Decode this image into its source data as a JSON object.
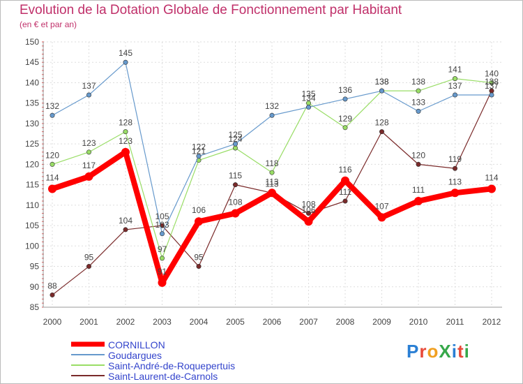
{
  "title": "Evolution de la Dotation Globale de Fonctionnement par Habitant",
  "subtitle": "(en € et par an)",
  "logo": "ProXiti",
  "chart_data": {
    "type": "line",
    "x": [
      "2000",
      "2001",
      "2002",
      "2003",
      "2004",
      "2005",
      "2006",
      "2007",
      "2008",
      "2009",
      "2010",
      "2011",
      "2012"
    ],
    "ylim": [
      85,
      150
    ],
    "yticks": [
      85,
      90,
      95,
      100,
      105,
      110,
      115,
      120,
      125,
      130,
      135,
      140,
      145,
      150
    ],
    "grid": true,
    "series": [
      {
        "name": "CORNILLON",
        "color": "#ff0000",
        "values": [
          114,
          117,
          123,
          91,
          106,
          108,
          113,
          106,
          116,
          107,
          111,
          113,
          114
        ]
      },
      {
        "name": "Goudargues",
        "color": "#6699cc",
        "values": [
          132,
          137,
          145,
          103,
          122,
          125,
          132,
          134,
          136,
          138,
          133,
          137,
          137
        ]
      },
      {
        "name": "Saint-André-de-Roquepertuis",
        "color": "#99dd66",
        "values": [
          120,
          123,
          128,
          97,
          121,
          124,
          118,
          135,
          129,
          138,
          138,
          141,
          140
        ]
      },
      {
        "name": "Saint-Laurent-de-Carnols",
        "color": "#7a2a2a",
        "values": [
          88,
          95,
          104,
          105,
          95,
          115,
          113,
          108,
          111,
          128,
          120,
          119,
          138
        ]
      }
    ]
  }
}
